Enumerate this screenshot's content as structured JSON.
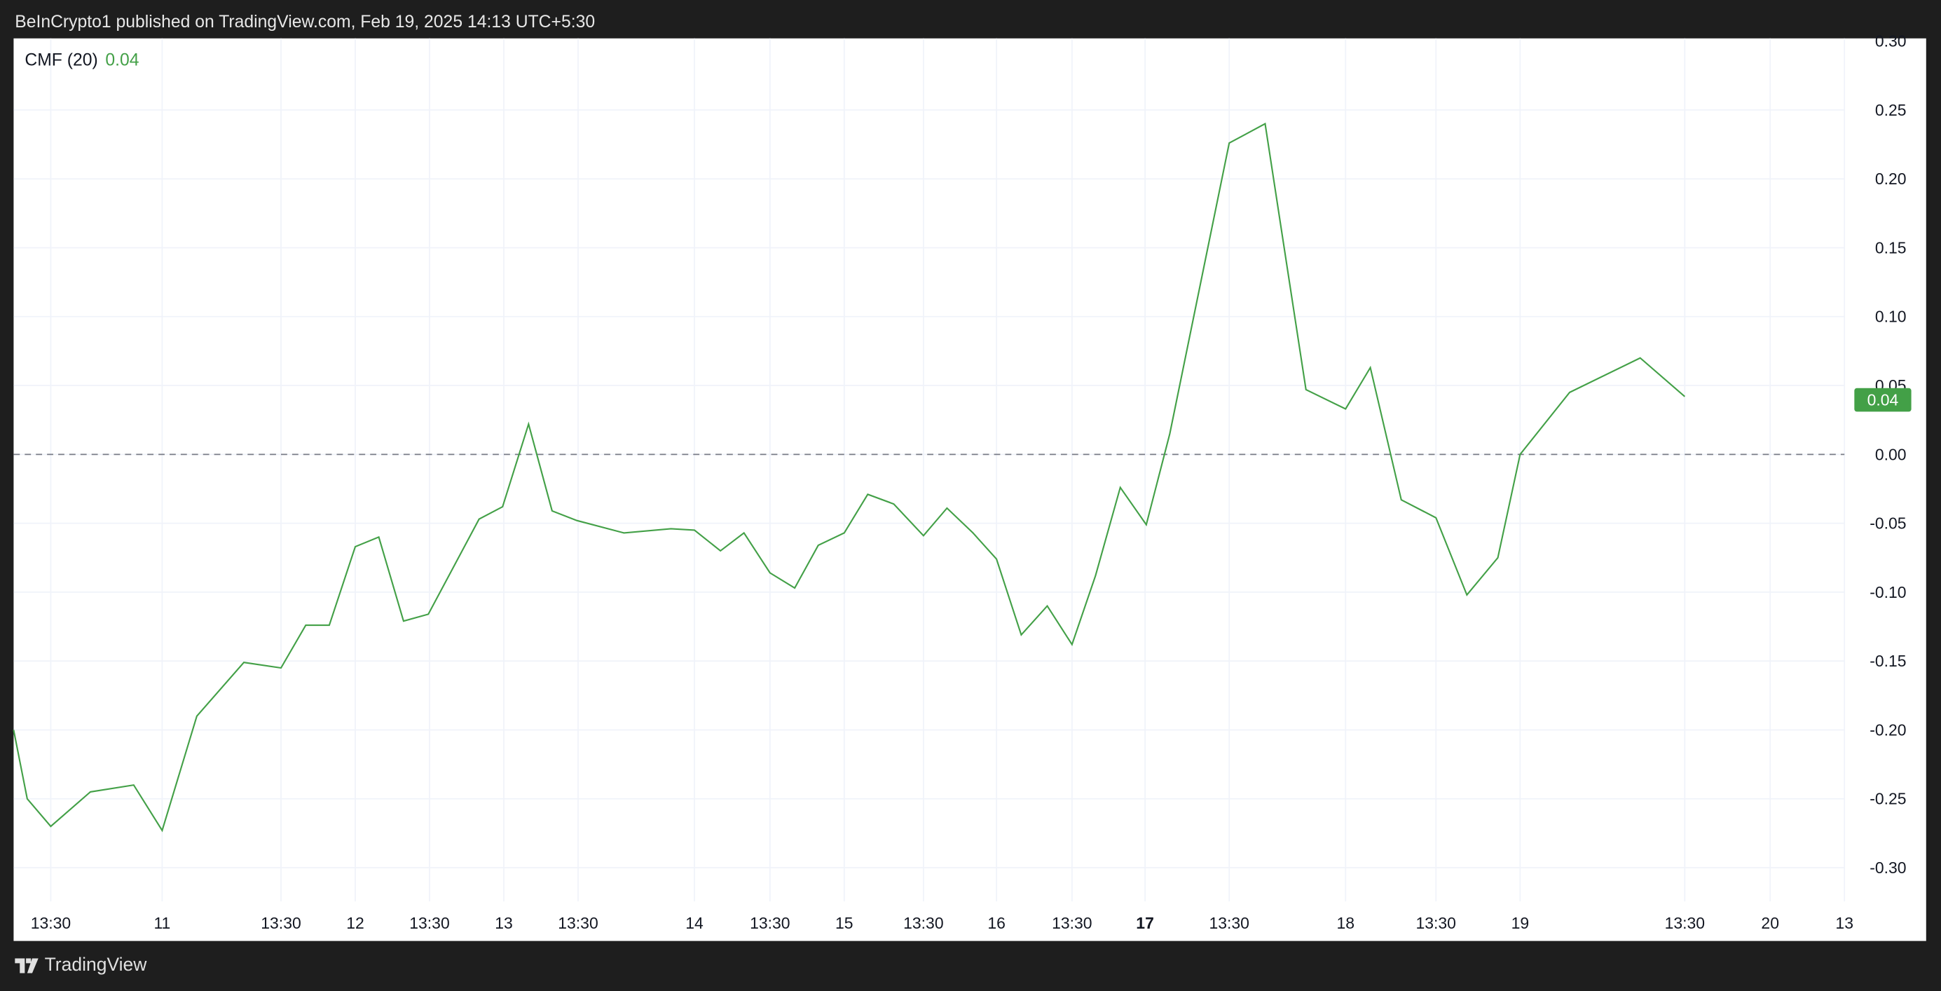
{
  "header": {
    "attribution": "BeInCrypto1 published on TradingView.com, Feb 19, 2025 14:13 UTC+5:30"
  },
  "legend": {
    "indicator": "CMF (20)",
    "value": "0.04"
  },
  "footer": {
    "brand": "TradingView"
  },
  "colors": {
    "line": "#43a047",
    "value_label": "#43a047",
    "zero_line": "#787b86",
    "grid": "#f0f3fa",
    "background": "#1e1e1e"
  },
  "chart_data": {
    "type": "line",
    "title": "CMF (20)",
    "xlabel": "",
    "ylabel": "",
    "ylim": [
      -0.32,
      0.3
    ],
    "grid": true,
    "zero_line": {
      "value": 0,
      "style": "dashed"
    },
    "last_value_label": "0.04",
    "y_ticks": [
      "0.30",
      "0.25",
      "0.20",
      "0.15",
      "0.10",
      "0.05",
      "0.00",
      "-0.05",
      "-0.10",
      "-0.15",
      "-0.20",
      "-0.25",
      "-0.30"
    ],
    "x_ticks": [
      "13:30",
      "11",
      "13:30",
      "12",
      "13:30",
      "13",
      "13:30",
      "14",
      "13:30",
      "15",
      "13:30",
      "16",
      "13:30",
      "17",
      "13:30",
      "18",
      "13:30",
      "19",
      "13:30",
      "20",
      "13"
    ],
    "series": [
      {
        "values": [
          -0.2,
          -0.25,
          -0.27,
          -0.245,
          -0.24,
          -0.273,
          -0.19,
          -0.151,
          -0.155,
          -0.124,
          -0.124,
          -0.067,
          -0.06,
          -0.121,
          -0.116,
          -0.047,
          -0.038,
          0.022,
          -0.041,
          -0.048,
          -0.057,
          -0.054,
          -0.055,
          -0.07,
          -0.057,
          -0.086,
          -0.097,
          -0.066,
          -0.057,
          -0.029,
          -0.036,
          -0.059,
          -0.039,
          -0.057,
          -0.076,
          -0.131,
          -0.11,
          -0.138,
          -0.088,
          -0.024,
          -0.051,
          0.015,
          0.226,
          0.24,
          0.047,
          0.033,
          0.063,
          -0.033,
          -0.046,
          -0.102,
          -0.075,
          0.0,
          0.045,
          0.07,
          0.042
        ]
      }
    ]
  }
}
